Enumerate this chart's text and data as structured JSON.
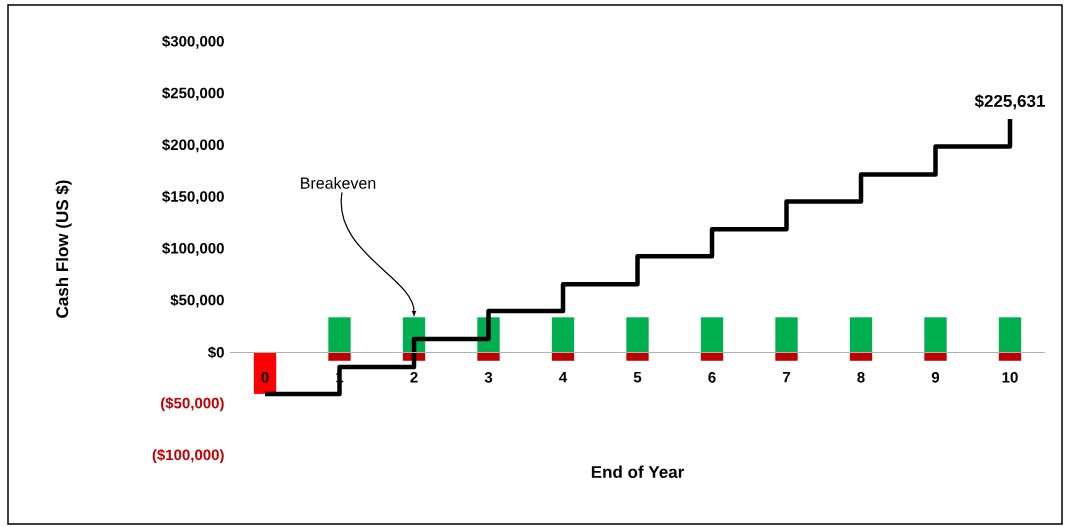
{
  "chart_data": {
    "type": "bar",
    "stacked": true,
    "xlabel": "End of Year",
    "ylabel": "Cash Flow (US $)",
    "x": [
      0,
      1,
      2,
      3,
      4,
      5,
      6,
      7,
      8,
      9,
      10
    ],
    "xlim": [
      -0.47,
      10.47
    ],
    "xticks": [
      0,
      1,
      2,
      3,
      4,
      5,
      6,
      7,
      8,
      9,
      10
    ],
    "ylim": [
      -100000,
      300000
    ],
    "yticks": [
      {
        "value": -100000,
        "label": "($100,000)"
      },
      {
        "value": -50000,
        "label": "($50,000)"
      },
      {
        "value": 0,
        "label": "$0"
      },
      {
        "value": 50000,
        "label": "$50,000"
      },
      {
        "value": 100000,
        "label": "$100,000"
      },
      {
        "value": 150000,
        "label": "$150,000"
      },
      {
        "value": 200000,
        "label": "$200,000"
      },
      {
        "value": 250000,
        "label": "$250,000"
      },
      {
        "value": 300000,
        "label": "$300,000"
      }
    ],
    "series": [
      {
        "color": "#00b050",
        "values": [
          null,
          34000,
          34000,
          34000,
          34000,
          34000,
          34000,
          34000,
          34000,
          34000,
          34000
        ]
      },
      {
        "colors": [
          "#ff0000",
          "#c00000",
          "#c00000",
          "#c00000",
          "#c00000",
          "#c00000",
          "#c00000",
          "#c00000",
          "#c00000",
          "#c00000",
          "#c00000"
        ],
        "values": [
          -40000,
          -8000,
          -8000,
          -8000,
          -8000,
          -8000,
          -8000,
          -8000,
          -8000,
          -8000,
          -8000
        ]
      },
      {
        "type": "step",
        "color": "#000000",
        "values": [
          -40000,
          -14000,
          13000,
          40000,
          66000,
          93000,
          119000,
          146000,
          172000,
          199000,
          225631
        ]
      }
    ],
    "annotations": [
      {
        "text": "Breakeven",
        "x": 2,
        "y": 34000
      },
      {
        "text": "$225,631",
        "x": 10,
        "y": 225631
      }
    ]
  }
}
